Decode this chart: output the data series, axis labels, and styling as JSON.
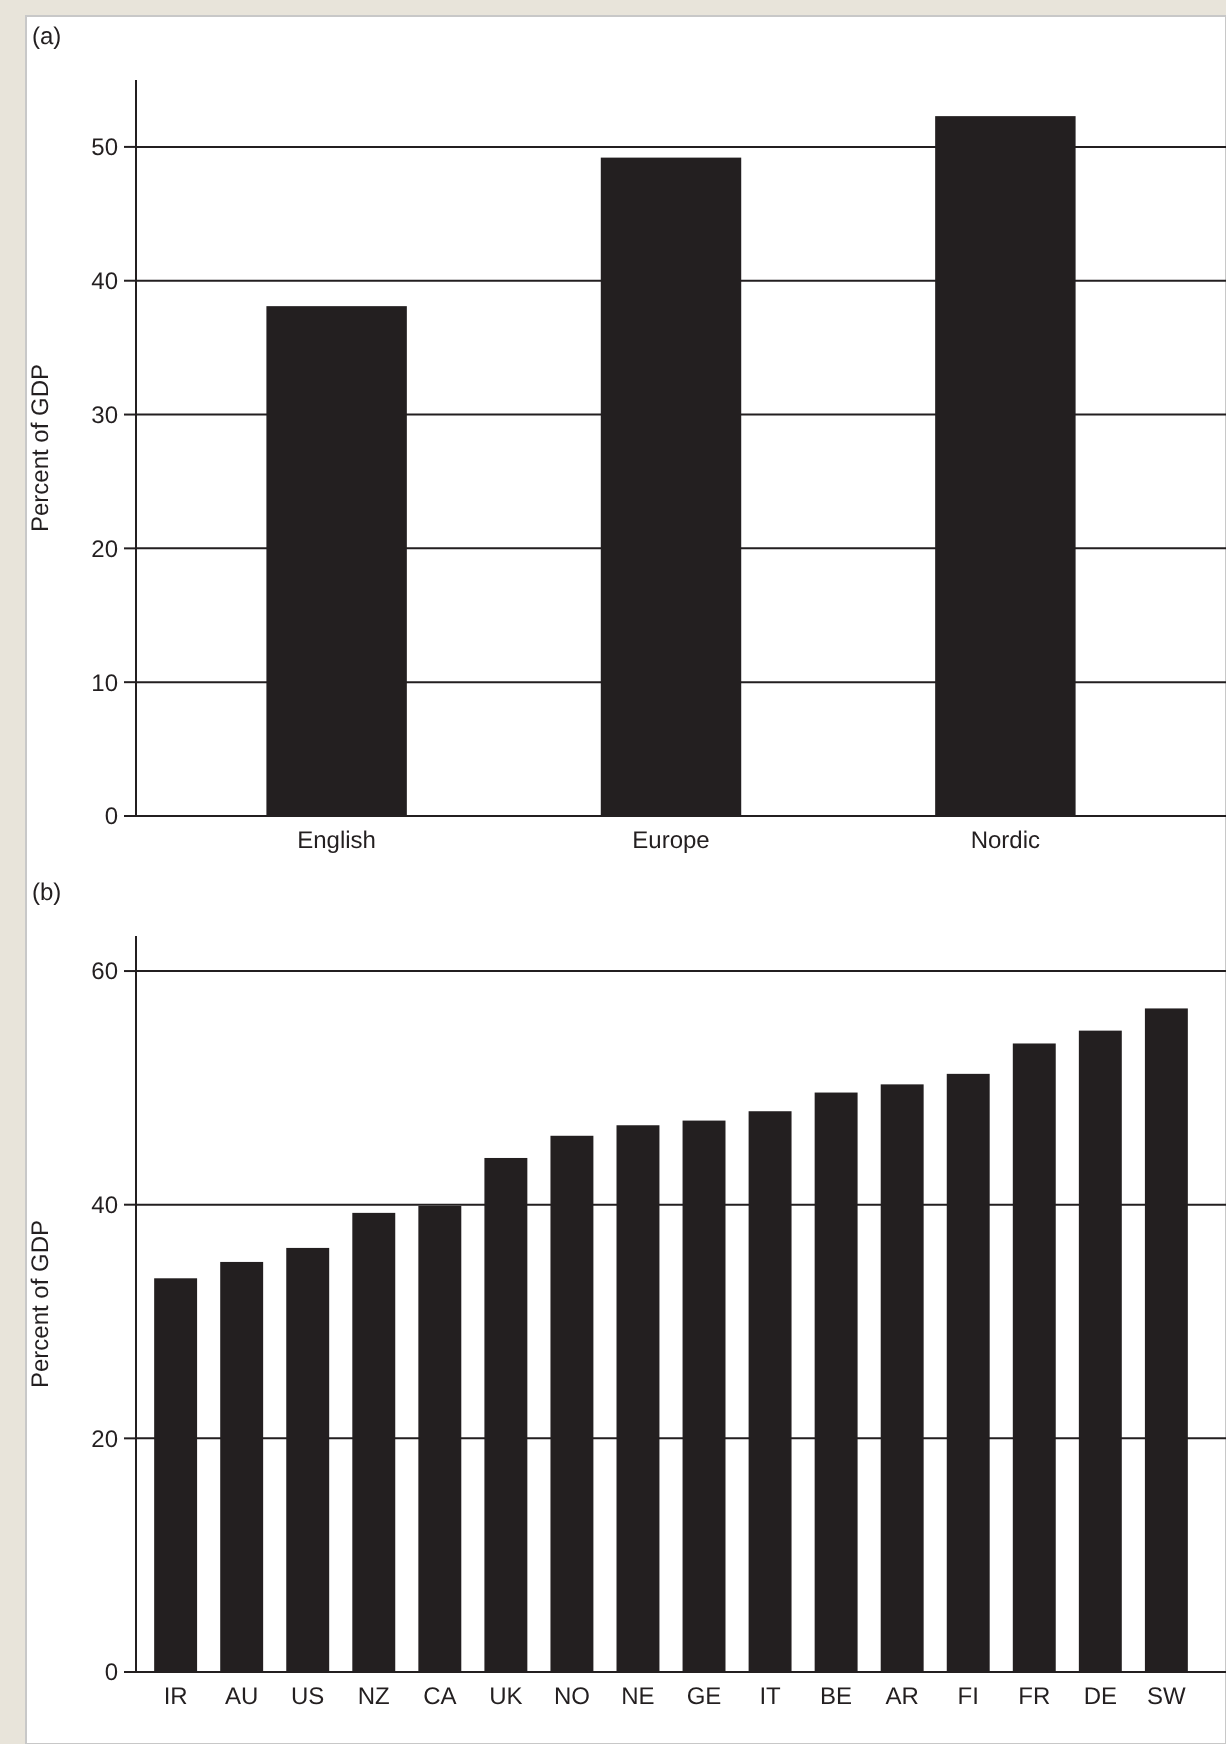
{
  "chart_data": [
    {
      "type": "bar",
      "title": "(a)",
      "ylabel": "Percent of GDP",
      "categories": [
        "English",
        "Europe",
        "Nordic"
      ],
      "series": [
        {
          "color": "#231f20",
          "values": [
            38.1,
            49.2,
            52.3
          ]
        }
      ],
      "ylim": [
        0,
        55
      ],
      "yticks": [
        0,
        10,
        20,
        30,
        40,
        50
      ],
      "grid": "y"
    },
    {
      "type": "bar",
      "title": "(b)",
      "ylabel": "Percent of GDP",
      "categories": [
        "IR",
        "AU",
        "US",
        "NZ",
        "CA",
        "UK",
        "NO",
        "NE",
        "GE",
        "IT",
        "BE",
        "AR",
        "FI",
        "FR",
        "DE",
        "SW"
      ],
      "series": [
        {
          "color": "#231f20",
          "values": [
            33.7,
            35.1,
            36.3,
            39.3,
            39.9,
            44.0,
            45.9,
            46.8,
            47.2,
            48.0,
            49.6,
            50.3,
            51.2,
            53.8,
            54.9,
            56.8
          ]
        }
      ],
      "ylim": [
        0,
        63
      ],
      "yticks": [
        0,
        20,
        40,
        60
      ],
      "grid": "y"
    }
  ]
}
